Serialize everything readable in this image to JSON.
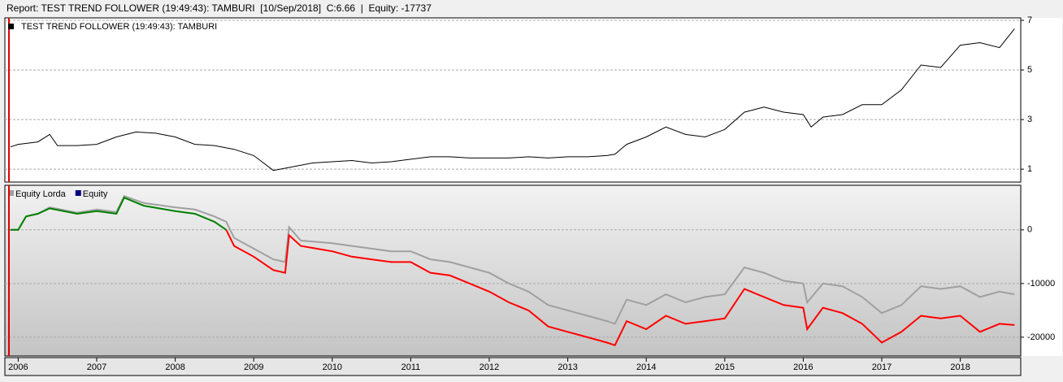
{
  "header": {
    "report": "Report: TEST TREND FOLLOWER (19:49:43): TAMBURI  [10/Sep/2018]  C:6.66  |  Equity: -17737"
  },
  "chart_data": [
    {
      "type": "line",
      "title": "TEST TREND FOLLOWER (19:49:43): TAMBURI",
      "color": "#000000",
      "x": [
        2005.9,
        2006.0,
        2006.25,
        2006.4,
        2006.5,
        2006.75,
        2007.0,
        2007.25,
        2007.5,
        2007.75,
        2008.0,
        2008.25,
        2008.5,
        2008.75,
        2009.0,
        2009.25,
        2009.5,
        2009.75,
        2010.0,
        2010.25,
        2010.5,
        2010.75,
        2011.0,
        2011.25,
        2011.5,
        2011.75,
        2012.0,
        2012.25,
        2012.5,
        2012.75,
        2013.0,
        2013.25,
        2013.5,
        2013.6,
        2013.75,
        2014.0,
        2014.25,
        2014.5,
        2014.75,
        2015.0,
        2015.25,
        2015.5,
        2015.75,
        2016.0,
        2016.1,
        2016.25,
        2016.5,
        2016.75,
        2017.0,
        2017.25,
        2017.5,
        2017.75,
        2018.0,
        2018.25,
        2018.5,
        2018.69
      ],
      "values": [
        1.9,
        2.0,
        2.1,
        2.4,
        1.95,
        1.95,
        2.0,
        2.3,
        2.5,
        2.45,
        2.3,
        2.0,
        1.95,
        1.8,
        1.55,
        0.95,
        1.1,
        1.25,
        1.3,
        1.35,
        1.25,
        1.3,
        1.4,
        1.5,
        1.5,
        1.45,
        1.45,
        1.45,
        1.5,
        1.45,
        1.5,
        1.5,
        1.55,
        1.6,
        2.0,
        2.3,
        2.7,
        2.4,
        2.3,
        2.6,
        3.3,
        3.5,
        3.3,
        3.2,
        2.7,
        3.1,
        3.2,
        3.6,
        3.6,
        4.2,
        5.2,
        5.1,
        6.0,
        6.1,
        5.9,
        6.66
      ],
      "xlim": [
        2005.83,
        2018.77
      ],
      "ylim": [
        0.48,
        7.1
      ],
      "yticks": [
        1,
        3,
        5,
        7
      ],
      "grid": true
    },
    {
      "type": "line",
      "x": [
        2005.9,
        2006.0,
        2006.1,
        2006.25,
        2006.4,
        2006.75,
        2007.0,
        2007.25,
        2007.35,
        2007.6,
        2008.0,
        2008.25,
        2008.5,
        2008.65,
        2008.75,
        2009.0,
        2009.25,
        2009.4,
        2009.45,
        2009.6,
        2010.0,
        2010.25,
        2010.5,
        2010.75,
        2011.0,
        2011.25,
        2011.5,
        2011.75,
        2012.0,
        2012.25,
        2012.5,
        2012.75,
        2013.0,
        2013.25,
        2013.5,
        2013.6,
        2013.75,
        2014.0,
        2014.25,
        2014.5,
        2014.75,
        2015.0,
        2015.25,
        2015.5,
        2015.75,
        2016.0,
        2016.05,
        2016.25,
        2016.5,
        2016.75,
        2017.0,
        2017.25,
        2017.5,
        2017.75,
        2018.0,
        2018.25,
        2018.5,
        2018.69
      ],
      "series": [
        {
          "name": "Equity Lorda",
          "color": "#a0a0a0",
          "values": [
            0,
            0,
            2500,
            3000,
            4200,
            3200,
            3800,
            3300,
            6300,
            5000,
            4200,
            3800,
            2500,
            1500,
            -1500,
            -3500,
            -5500,
            -6000,
            500,
            -2000,
            -2500,
            -3000,
            -3500,
            -4000,
            -4000,
            -5500,
            -6000,
            -7000,
            -8000,
            -10000,
            -11500,
            -14000,
            -15000,
            -16000,
            -17000,
            -17500,
            -13000,
            -14000,
            -12000,
            -13500,
            -12500,
            -12000,
            -7000,
            -8000,
            -9500,
            -10000,
            -13500,
            -10000,
            -10500,
            -12500,
            -15500,
            -14000,
            -10500,
            -11000,
            -10500,
            -12500,
            -11500,
            -12000
          ]
        },
        {
          "name": "Equity",
          "color": "#000080",
          "color_positive": "#008000",
          "color_negative": "#ff0000",
          "values": [
            0,
            0,
            2500,
            3000,
            4000,
            3000,
            3500,
            3000,
            6000,
            4500,
            3500,
            3000,
            1500,
            0,
            -3000,
            -5000,
            -7500,
            -8000,
            -1000,
            -3000,
            -4000,
            -5000,
            -5500,
            -6000,
            -6000,
            -8000,
            -8500,
            -10000,
            -11500,
            -13500,
            -15000,
            -18000,
            -19000,
            -20000,
            -21000,
            -21500,
            -17000,
            -18500,
            -16000,
            -17500,
            -17000,
            -16500,
            -11000,
            -12500,
            -14000,
            -14500,
            -18500,
            -14500,
            -15500,
            -17500,
            -21000,
            -19000,
            -16000,
            -16500,
            -16000,
            -19000,
            -17500,
            -17737
          ]
        }
      ],
      "xlim": [
        2005.83,
        2018.77
      ],
      "xticks": [
        2006,
        2007,
        2008,
        2009,
        2010,
        2011,
        2012,
        2013,
        2014,
        2015,
        2016,
        2017,
        2018
      ],
      "ylim": [
        -23500,
        8300
      ],
      "yticks": [
        0,
        -10000,
        -20000
      ],
      "grid": true
    }
  ]
}
